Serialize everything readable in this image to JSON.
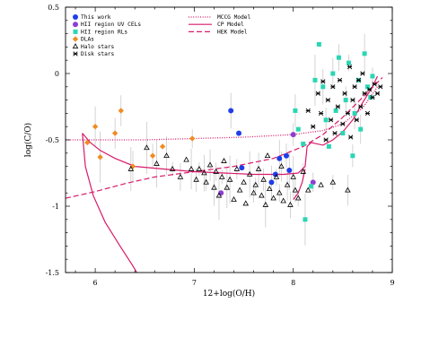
{
  "chart_data": {
    "type": "scatter",
    "xlabel": "12+log(O/H)",
    "ylabel": "log(C/O)",
    "xlim": [
      5.7,
      9.0
    ],
    "ylim": [
      -1.5,
      0.5
    ],
    "xticks": [
      "6",
      "7",
      "8",
      "9"
    ],
    "yticks": [
      "0.5",
      "0",
      "-0.5",
      "-1",
      "-1.5"
    ],
    "legend_position": "top-left",
    "series": [
      {
        "name": "This work",
        "marker": "filled-circle",
        "color": "#1f3ee8",
        "points": [
          [
            7.37,
            -0.28
          ],
          [
            7.45,
            -0.45
          ],
          [
            7.48,
            -0.71
          ],
          [
            7.78,
            -0.82
          ],
          [
            7.82,
            -0.76
          ],
          [
            7.86,
            -0.64
          ],
          [
            7.93,
            -0.62
          ],
          [
            7.96,
            -0.73
          ]
        ]
      },
      {
        "name": "HII region UV CELs",
        "marker": "filled-circle",
        "color": "#8e3fd0",
        "points": [
          [
            7.27,
            -0.9
          ],
          [
            8.0,
            -0.46
          ],
          [
            8.2,
            -0.82
          ]
        ]
      },
      {
        "name": "HII region RLs",
        "marker": "filled-square",
        "color": "#2ad6b4",
        "points": [
          [
            8.02,
            -0.28
          ],
          [
            8.05,
            -0.42
          ],
          [
            8.1,
            -0.53
          ],
          [
            8.12,
            -1.1
          ],
          [
            8.18,
            -0.85
          ],
          [
            8.22,
            -0.05
          ],
          [
            8.26,
            0.22
          ],
          [
            8.3,
            -0.1
          ],
          [
            8.33,
            -0.35
          ],
          [
            8.36,
            -0.55
          ],
          [
            8.4,
            0.0
          ],
          [
            8.43,
            -0.28
          ],
          [
            8.46,
            0.12
          ],
          [
            8.5,
            -0.45
          ],
          [
            8.53,
            -0.2
          ],
          [
            8.56,
            0.08
          ],
          [
            8.6,
            -0.62
          ],
          [
            8.62,
            -0.3
          ],
          [
            8.66,
            -0.05
          ],
          [
            8.68,
            -0.42
          ],
          [
            8.72,
            0.15
          ],
          [
            8.75,
            -0.1
          ],
          [
            8.78,
            -0.18
          ],
          [
            8.8,
            -0.02
          ]
        ]
      },
      {
        "name": "DLAs",
        "marker": "filled-diamond",
        "color": "#f08c24",
        "points": [
          [
            5.92,
            -0.52
          ],
          [
            6.0,
            -0.4
          ],
          [
            6.05,
            -0.63
          ],
          [
            6.2,
            -0.45
          ],
          [
            6.26,
            -0.28
          ],
          [
            6.38,
            -0.7
          ],
          [
            6.58,
            -0.62
          ],
          [
            6.68,
            -0.55
          ],
          [
            6.98,
            -0.49
          ]
        ]
      },
      {
        "name": "Halo stars",
        "marker": "open-triangle",
        "color": "#000000",
        "points": [
          [
            6.36,
            -0.72
          ],
          [
            6.52,
            -0.56
          ],
          [
            6.62,
            -0.68
          ],
          [
            6.72,
            -0.62
          ],
          [
            6.78,
            -0.72
          ],
          [
            6.86,
            -0.78
          ],
          [
            6.92,
            -0.65
          ],
          [
            6.97,
            -0.72
          ],
          [
            7.02,
            -0.8
          ],
          [
            7.05,
            -0.72
          ],
          [
            7.1,
            -0.75
          ],
          [
            7.12,
            -0.82
          ],
          [
            7.16,
            -0.69
          ],
          [
            7.2,
            -0.86
          ],
          [
            7.22,
            -0.74
          ],
          [
            7.25,
            -0.92
          ],
          [
            7.28,
            -0.78
          ],
          [
            7.3,
            -0.66
          ],
          [
            7.33,
            -0.86
          ],
          [
            7.36,
            -0.8
          ],
          [
            7.4,
            -0.95
          ],
          [
            7.43,
            -0.72
          ],
          [
            7.46,
            -0.88
          ],
          [
            7.5,
            -0.82
          ],
          [
            7.52,
            -0.98
          ],
          [
            7.56,
            -0.76
          ],
          [
            7.6,
            -0.9
          ],
          [
            7.62,
            -0.84
          ],
          [
            7.65,
            -0.72
          ],
          [
            7.68,
            -0.92
          ],
          [
            7.7,
            -0.8
          ],
          [
            7.72,
            -0.99
          ],
          [
            7.74,
            -0.62
          ],
          [
            7.76,
            -0.87
          ],
          [
            7.8,
            -0.94
          ],
          [
            7.83,
            -0.78
          ],
          [
            7.86,
            -0.9
          ],
          [
            7.88,
            -0.7
          ],
          [
            7.9,
            -0.96
          ],
          [
            7.94,
            -0.84
          ],
          [
            7.97,
            -0.99
          ],
          [
            8.0,
            -0.78
          ],
          [
            8.02,
            -0.88
          ],
          [
            8.05,
            -0.94
          ],
          [
            8.1,
            -0.74
          ],
          [
            8.15,
            -0.88
          ],
          [
            8.28,
            -0.84
          ],
          [
            8.4,
            -0.82
          ],
          [
            8.55,
            -0.88
          ]
        ]
      },
      {
        "name": "Disk stars",
        "marker": "cross-square",
        "color": "#000000",
        "points": [
          [
            8.15,
            -0.28
          ],
          [
            8.2,
            -0.4
          ],
          [
            8.25,
            -0.15
          ],
          [
            8.28,
            -0.3
          ],
          [
            8.3,
            -0.06
          ],
          [
            8.33,
            -0.5
          ],
          [
            8.35,
            -0.2
          ],
          [
            8.38,
            -0.35
          ],
          [
            8.4,
            -0.1
          ],
          [
            8.42,
            -0.45
          ],
          [
            8.45,
            -0.25
          ],
          [
            8.47,
            -0.05
          ],
          [
            8.5,
            -0.38
          ],
          [
            8.52,
            -0.15
          ],
          [
            8.55,
            -0.3
          ],
          [
            8.57,
            0.05
          ],
          [
            8.58,
            -0.48
          ],
          [
            8.6,
            -0.2
          ],
          [
            8.62,
            -0.1
          ],
          [
            8.64,
            -0.35
          ],
          [
            8.66,
            -0.05
          ],
          [
            8.68,
            -0.25
          ],
          [
            8.7,
            0.0
          ],
          [
            8.72,
            -0.15
          ],
          [
            8.75,
            -0.3
          ],
          [
            8.77,
            -0.12
          ],
          [
            8.8,
            -0.18
          ],
          [
            8.82,
            -0.08
          ],
          [
            8.85,
            -0.15
          ],
          [
            8.88,
            -0.1
          ]
        ]
      }
    ],
    "models": [
      {
        "name": "MCCG Model",
        "style": "dotted",
        "color": "#d81b6a",
        "points": [
          [
            5.7,
            -0.5
          ],
          [
            6.0,
            -0.5
          ],
          [
            6.5,
            -0.5
          ],
          [
            7.0,
            -0.49
          ],
          [
            7.5,
            -0.48
          ],
          [
            8.0,
            -0.46
          ],
          [
            8.3,
            -0.43
          ],
          [
            8.5,
            -0.38
          ],
          [
            8.7,
            -0.26
          ],
          [
            8.85,
            -0.1
          ]
        ]
      },
      {
        "name": "CP Model",
        "style": "solid",
        "color": "#d81b6a",
        "points": [
          [
            5.87,
            -0.45
          ],
          [
            5.95,
            -0.52
          ],
          [
            6.05,
            -0.58
          ],
          [
            6.2,
            -0.64
          ],
          [
            6.4,
            -0.7
          ],
          [
            6.7,
            -0.72
          ],
          [
            7.0,
            -0.74
          ],
          [
            7.3,
            -0.75
          ],
          [
            7.6,
            -0.76
          ],
          [
            7.9,
            -0.76
          ],
          [
            8.05,
            -0.75
          ],
          [
            8.12,
            -0.7
          ],
          [
            8.14,
            -0.55
          ],
          [
            8.18,
            -0.52
          ],
          [
            8.3,
            -0.54
          ],
          [
            8.4,
            -0.5
          ],
          [
            8.5,
            -0.44
          ],
          [
            8.6,
            -0.35
          ],
          [
            8.7,
            -0.22
          ],
          [
            8.8,
            -0.1
          ],
          [
            8.85,
            -0.02
          ]
        ]
      },
      {
        "name": "CP Model turnback branch",
        "style": "solid",
        "color": "#d81b6a",
        "points": [
          [
            8.12,
            -0.72
          ],
          [
            8.09,
            -0.82
          ],
          [
            8.05,
            -0.9
          ],
          [
            8.0,
            -0.95
          ]
        ]
      },
      {
        "name": "CP Model low-metallicity branch",
        "style": "solid",
        "color": "#d81b6a",
        "points": [
          [
            5.87,
            -0.45
          ],
          [
            5.9,
            -0.7
          ],
          [
            5.98,
            -0.92
          ],
          [
            6.1,
            -1.12
          ],
          [
            6.25,
            -1.3
          ],
          [
            6.38,
            -1.45
          ],
          [
            6.42,
            -1.5
          ]
        ]
      },
      {
        "name": "HEK Model",
        "style": "dashed",
        "color": "#d81b6a",
        "points": [
          [
            5.7,
            -0.94
          ],
          [
            6.0,
            -0.89
          ],
          [
            6.3,
            -0.83
          ],
          [
            6.6,
            -0.78
          ],
          [
            7.0,
            -0.74
          ],
          [
            7.4,
            -0.7
          ],
          [
            7.8,
            -0.64
          ],
          [
            8.1,
            -0.55
          ],
          [
            8.3,
            -0.46
          ],
          [
            8.5,
            -0.33
          ],
          [
            8.7,
            -0.18
          ],
          [
            8.9,
            -0.03
          ]
        ]
      }
    ]
  }
}
